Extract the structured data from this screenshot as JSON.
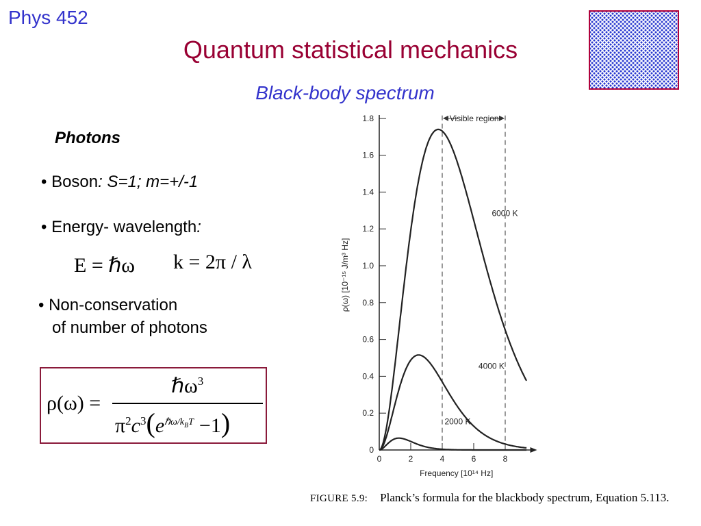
{
  "header": {
    "course": "Phys 452",
    "title": "Quantum statistical mechanics",
    "subtitle": "Black-body spectrum"
  },
  "content": {
    "heading": "Photons",
    "bullet1": {
      "label": "• Boson",
      "detail": ": S=1; m=+/-1"
    },
    "bullet2": {
      "label": "• Energy- wavelength",
      "detail": ":"
    },
    "eq_energy": "E = ℏω",
    "eq_wavenumber": "k = 2π / λ",
    "bullet3": {
      "line1": "• Non-conservation",
      "line2": "of number of photons"
    },
    "formula": {
      "lhs": "ρ(ω) =",
      "numerator": "ℏω",
      "numerator_exp": "3",
      "den_pi": "π",
      "den_pi_exp": "2",
      "den_c": "c",
      "den_c_exp": "3",
      "den_e": "e",
      "den_e_exp": "ℏω/k",
      "den_e_exp_sub": "B",
      "den_e_exp_T": "T",
      "den_minus": "−1"
    }
  },
  "chart_data": {
    "type": "line",
    "xlabel": "Frequency [10¹⁴ Hz]",
    "ylabel": "ρ(ω) [10⁻¹⁵ J/m³ Hz]",
    "xlim": [
      0,
      9.5
    ],
    "ylim": [
      0,
      1.9
    ],
    "x_ticks": [
      0,
      2,
      4,
      6,
      8
    ],
    "y_ticks": [
      "0",
      "0.2",
      "0.4",
      "0.6",
      "0.8",
      "1.0",
      "1.2",
      "1.4",
      "1.6",
      "1.8"
    ],
    "visible_region": {
      "label": "Visible region",
      "x_start": 4,
      "x_end": 8
    },
    "series": [
      {
        "name": "6000 K",
        "temperature": 6000
      },
      {
        "name": "4000 K",
        "temperature": 4000
      },
      {
        "name": "2000 K",
        "temperature": 2000
      }
    ],
    "peak_6000K": 1.74,
    "caption_label": "FIGURE 5.9:",
    "caption_text": "Planck’s formula for the blackbody spectrum, Equation 5.113."
  }
}
